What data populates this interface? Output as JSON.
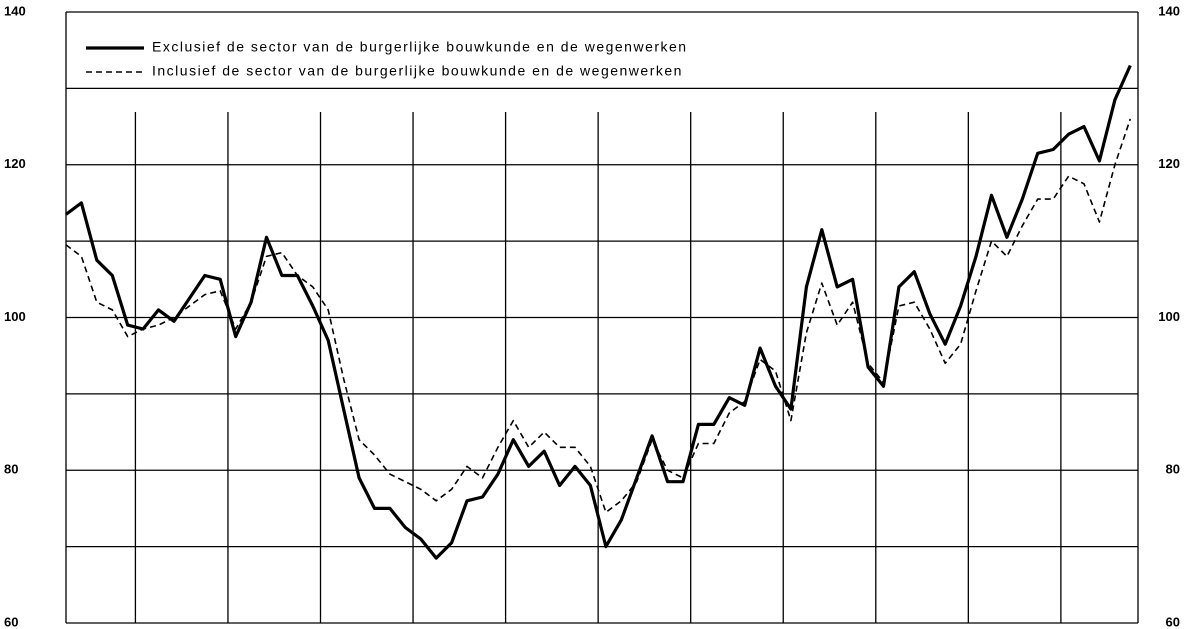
{
  "chart_data": {
    "type": "line",
    "categories": [
      null,
      null,
      null,
      null,
      null,
      null,
      null,
      null,
      null,
      null,
      null,
      null,
      null,
      null,
      null,
      null,
      null,
      null,
      null,
      null,
      null,
      null,
      null,
      null,
      null,
      null,
      null,
      null,
      null,
      null,
      null,
      null,
      null,
      null,
      null,
      null,
      null,
      null,
      null,
      null,
      null,
      null,
      null,
      null,
      null,
      null,
      null,
      null,
      null,
      null,
      null,
      null,
      null,
      null,
      null,
      null,
      null,
      null,
      null,
      null,
      null,
      null,
      null,
      null,
      null,
      null,
      null,
      null,
      null,
      null
    ],
    "series": [
      {
        "name": "Exclusief de sector van de burgerlijke bouwkunde en de wegenwerken",
        "color": "#000000",
        "dash": "solid",
        "values": [
          113.5,
          115,
          107.5,
          105.5,
          99,
          98.5,
          101,
          99.5,
          102.5,
          105.5,
          105,
          97.5,
          102,
          110.5,
          105.5,
          105.5,
          101.5,
          97,
          88,
          79,
          75,
          75,
          72.5,
          71,
          68.5,
          70.5,
          76,
          76.5,
          79.5,
          84,
          80.5,
          82.5,
          78,
          80.5,
          78,
          70,
          73.5,
          79,
          84.5,
          78.5,
          78.5,
          86,
          86,
          89.5,
          88.5,
          96,
          91,
          88,
          104,
          111.5,
          104,
          105,
          93.5,
          91,
          104,
          106,
          100.5,
          96.5,
          101.5,
          108,
          116,
          110.5,
          115.5,
          121.5,
          122,
          124,
          125,
          120.5,
          128.5,
          133
        ]
      },
      {
        "name": "Inclusief de sector van de burgerlijke bouwkunde en de wegenwerken",
        "color": "#000000",
        "dash": "dashed",
        "values": [
          109.5,
          108,
          102,
          101,
          97.5,
          98.5,
          99,
          100,
          101.5,
          103,
          103.5,
          98.5,
          102,
          108,
          108.5,
          105.5,
          104,
          101,
          92,
          84,
          82,
          79.5,
          78.5,
          77.5,
          76,
          77.5,
          80.5,
          79,
          83,
          86.5,
          83,
          85,
          83,
          83,
          80.5,
          74.5,
          76,
          78.5,
          84,
          80,
          79,
          83.5,
          83.5,
          87.5,
          89,
          94.5,
          93,
          86.5,
          98,
          104.5,
          99,
          102,
          94,
          91.5,
          101.5,
          102,
          98.5,
          94,
          96.5,
          103.5,
          110,
          108,
          112,
          115.5,
          115.5,
          118.5,
          117.5,
          112.5,
          120,
          126
        ]
      }
    ],
    "ylim": [
      60,
      140
    ],
    "yticks": [
      60,
      80,
      100,
      120,
      140
    ],
    "minor_yticks": [
      70,
      90,
      110,
      130
    ],
    "xticks": [
      4.5,
      10.5,
      16.5,
      22.5,
      28.5,
      34.5,
      40.5,
      46.5,
      52.5,
      58.5,
      64.5
    ],
    "xlim": [
      0,
      69.5
    ],
    "grid": true,
    "right_axis": true,
    "legend": "upper left"
  }
}
